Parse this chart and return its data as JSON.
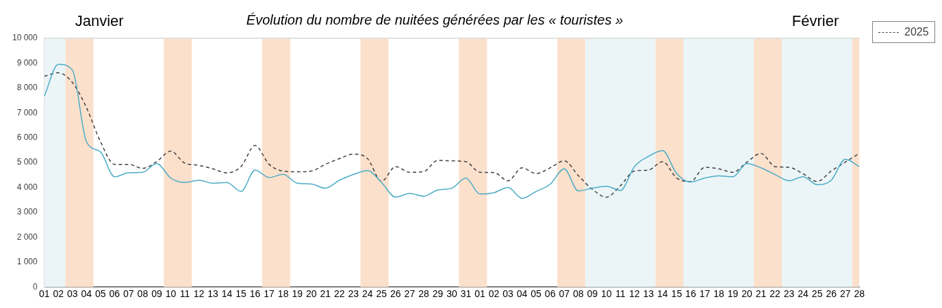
{
  "chart_data": {
    "type": "line",
    "title": "Évolution du nombre de nuitées générées par les « touristes »",
    "annotations": [
      "Janvier",
      "Février"
    ],
    "x": [
      "--01-01",
      "--01-02",
      "--01-03",
      "--01-04",
      "--01-05",
      "--01-06",
      "--01-07",
      "--01-08",
      "--01-09",
      "--01-10",
      "--01-11",
      "--01-12",
      "--01-13",
      "--01-14",
      "--01-15",
      "--01-16",
      "--01-17",
      "--01-18",
      "--01-19",
      "--01-20",
      "--01-21",
      "--01-22",
      "--01-23",
      "--01-24",
      "--01-25",
      "--01-26",
      "--01-27",
      "--01-28",
      "--01-29",
      "--01-30",
      "--01-31",
      "--02-01",
      "--02-02",
      "--02-03",
      "--02-04",
      "--02-05",
      "--02-06",
      "--02-07",
      "--02-08",
      "--02-09",
      "--02-10",
      "--02-11",
      "--02-12",
      "--02-13",
      "--02-14",
      "--02-15",
      "--02-16",
      "--02-17",
      "--02-18",
      "--02-19",
      "--02-20",
      "--02-21",
      "--02-22",
      "--02-23",
      "--02-24",
      "--02-25",
      "--02-26",
      "--02-27",
      "--02-28"
    ],
    "series": [
      {
        "color": "#4bacc6",
        "line_style": "solid",
        "values": [
          7670,
          8950,
          8720,
          5840,
          5430,
          4430,
          4590,
          4610,
          4960,
          4380,
          4200,
          4290,
          4170,
          4200,
          3840,
          4700,
          4400,
          4530,
          4170,
          4140,
          3970,
          4290,
          4520,
          4680,
          4200,
          3610,
          3760,
          3650,
          3900,
          3970,
          4380,
          3740,
          3790,
          4000,
          3560,
          3840,
          4130,
          4750,
          3860,
          3970,
          4050,
          3880,
          4840,
          5250,
          5480,
          4560,
          4220,
          4380,
          4470,
          4430,
          4960,
          4790,
          4520,
          4270,
          4430,
          4110,
          4290,
          5130,
          4840
        ]
      },
      {
        "name": "2025",
        "color": "#404040",
        "line_style": "dashed",
        "values": [
          8470,
          8610,
          8220,
          7210,
          5840,
          4930,
          4930,
          4770,
          5040,
          5460,
          4980,
          4890,
          4750,
          4590,
          4840,
          5690,
          4930,
          4660,
          4630,
          4660,
          4930,
          5160,
          5340,
          5160,
          4250,
          4840,
          4610,
          4640,
          5090,
          5070,
          5040,
          4610,
          4600,
          4270,
          4790,
          4560,
          4790,
          5070,
          4480,
          3930,
          3610,
          4070,
          4660,
          4700,
          5040,
          4380,
          4240,
          4810,
          4750,
          4610,
          5020,
          5370,
          4840,
          4810,
          4550,
          4240,
          4660,
          5020,
          5370
        ]
      }
    ],
    "xlim": [
      "--01-01",
      "--02-28"
    ],
    "xticks": [
      {
        "value": "--01-01",
        "label": "01"
      },
      {
        "value": "--01-02",
        "label": "02"
      },
      {
        "value": "--01-03",
        "label": "03"
      },
      {
        "value": "--01-04",
        "label": "04"
      },
      {
        "value": "--01-05",
        "label": "05"
      },
      {
        "value": "--01-06",
        "label": "06"
      },
      {
        "value": "--01-07",
        "label": "07"
      },
      {
        "value": "--01-08",
        "label": "08"
      },
      {
        "value": "--01-09",
        "label": "09"
      },
      {
        "value": "--01-10",
        "label": "10"
      },
      {
        "value": "--01-11",
        "label": "11"
      },
      {
        "value": "--01-12",
        "label": "12"
      },
      {
        "value": "--01-13",
        "label": "13"
      },
      {
        "value": "--01-14",
        "label": "14"
      },
      {
        "value": "--01-15",
        "label": "15"
      },
      {
        "value": "--01-16",
        "label": "16"
      },
      {
        "value": "--01-17",
        "label": "17"
      },
      {
        "value": "--01-18",
        "label": "18"
      },
      {
        "value": "--01-19",
        "label": "19"
      },
      {
        "value": "--01-20",
        "label": "20"
      },
      {
        "value": "--01-21",
        "label": "21"
      },
      {
        "value": "--01-22",
        "label": "22"
      },
      {
        "value": "--01-23",
        "label": "23"
      },
      {
        "value": "--01-24",
        "label": "24"
      },
      {
        "value": "--01-25",
        "label": "25"
      },
      {
        "value": "--01-26",
        "label": "26"
      },
      {
        "value": "--01-27",
        "label": "27"
      },
      {
        "value": "--01-28",
        "label": "28"
      },
      {
        "value": "--01-29",
        "label": "29"
      },
      {
        "value": "--01-30",
        "label": "30"
      },
      {
        "value": "--01-31",
        "label": "31"
      },
      {
        "value": "--02-01",
        "label": "01"
      },
      {
        "value": "--02-02",
        "label": "02"
      },
      {
        "value": "--02-03",
        "label": "03"
      },
      {
        "value": "--02-04",
        "label": "04"
      },
      {
        "value": "--02-05",
        "label": "05"
      },
      {
        "value": "--02-06",
        "label": "06"
      },
      {
        "value": "--02-07",
        "label": "07"
      },
      {
        "value": "--02-08",
        "label": "08"
      },
      {
        "value": "--02-09",
        "label": "09"
      },
      {
        "value": "--02-10",
        "label": "10"
      },
      {
        "value": "--02-11",
        "label": "11"
      },
      {
        "value": "--02-12",
        "label": "12"
      },
      {
        "value": "--02-13",
        "label": "13"
      },
      {
        "value": "--02-14",
        "label": "14"
      },
      {
        "value": "--02-15",
        "label": "15"
      },
      {
        "value": "--02-16",
        "label": "16"
      },
      {
        "value": "--02-17",
        "label": "17"
      },
      {
        "value": "--02-18",
        "label": "18"
      },
      {
        "value": "--02-19",
        "label": "19"
      },
      {
        "value": "--02-20",
        "label": "20"
      },
      {
        "value": "--02-21",
        "label": "21"
      },
      {
        "value": "--02-22",
        "label": "22"
      },
      {
        "value": "--02-23",
        "label": "23"
      },
      {
        "value": "--02-24",
        "label": "24"
      },
      {
        "value": "--02-25",
        "label": "25"
      },
      {
        "value": "--02-26",
        "label": "26"
      },
      {
        "value": "--02-27",
        "label": "27"
      },
      {
        "value": "--02-28",
        "label": "28"
      }
    ],
    "ylim": [
      0,
      10000
    ],
    "yticks": [
      {
        "value": 0,
        "label": "0"
      },
      {
        "value": 1000,
        "label": "1 000"
      },
      {
        "value": 2000,
        "label": "2 000"
      },
      {
        "value": 3000,
        "label": "3 000"
      },
      {
        "value": 4000,
        "label": "4 000"
      },
      {
        "value": 5000,
        "label": "5 000"
      },
      {
        "value": 6000,
        "label": "6 000"
      },
      {
        "value": 7000,
        "label": "7 000"
      },
      {
        "value": 8000,
        "label": "8 000"
      },
      {
        "value": 9000,
        "label": "9 000"
      },
      {
        "value": 10000,
        "label": "10 000"
      }
    ],
    "bands": [
      {
        "axis": "x",
        "from": "--01-01",
        "to": "--01-02T12:00",
        "color": "#ebf5f8"
      },
      {
        "axis": "x",
        "from": "--01-02T12:00",
        "to": "--01-04T12:00",
        "color": "#fbe0cc"
      },
      {
        "axis": "x",
        "from": "--01-09T12:00",
        "to": "--01-11T12:00",
        "color": "#fbe0cc"
      },
      {
        "axis": "x",
        "from": "--01-16T12:00",
        "to": "--01-18T12:00",
        "color": "#fbe0cc"
      },
      {
        "axis": "x",
        "from": "--01-23T12:00",
        "to": "--01-25T12:00",
        "color": "#fbe0cc"
      },
      {
        "axis": "x",
        "from": "--01-30T12:00",
        "to": "--02-01T12:00",
        "color": "#fbe0cc"
      },
      {
        "axis": "x",
        "from": "--02-06T12:00",
        "to": "--02-08T12:00",
        "color": "#fbe0cc"
      },
      {
        "axis": "x",
        "from": "--02-08T12:00",
        "to": "--02-13T12:00",
        "color": "#ebf5f8"
      },
      {
        "axis": "x",
        "from": "--02-13T12:00",
        "to": "--02-15T12:00",
        "color": "#fbe0cc"
      },
      {
        "axis": "x",
        "from": "--02-15T12:00",
        "to": "--02-20T12:00",
        "color": "#ebf5f8"
      },
      {
        "axis": "x",
        "from": "--02-20T12:00",
        "to": "--02-22T12:00",
        "color": "#fbe0cc"
      },
      {
        "axis": "x",
        "from": "--02-22T12:00",
        "to": "--02-27T12:00",
        "color": "#ebf5f8"
      },
      {
        "axis": "x",
        "from": "--02-27T12:00",
        "to": "--02-28",
        "color": "#fbe0cc"
      }
    ],
    "grid": false,
    "legend": "top right",
    "marker": "none"
  }
}
